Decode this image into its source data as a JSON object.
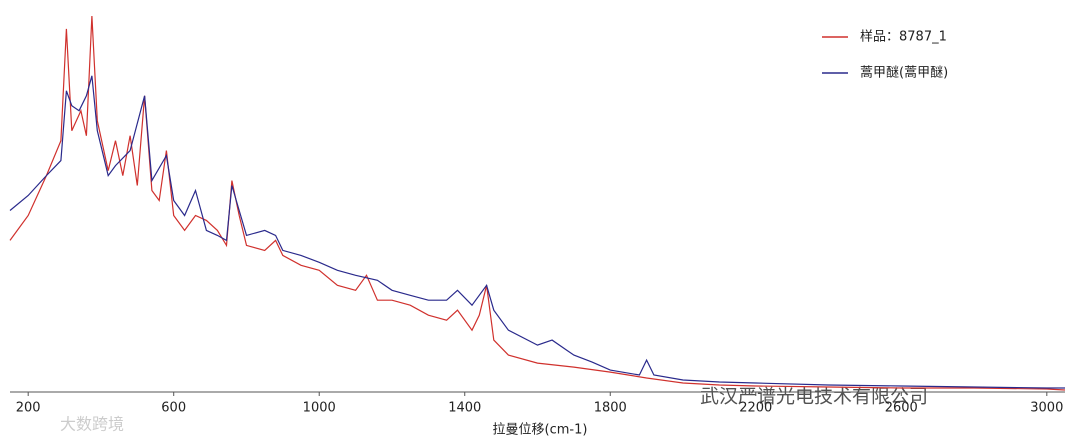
{
  "chart_data": {
    "type": "line",
    "x_label": "拉曼位移(cm-1)",
    "xlim": [
      150,
      3050
    ],
    "xticks": [
      200,
      600,
      1000,
      1400,
      1800,
      2200,
      2600,
      3000
    ],
    "ylim": [
      0,
      385
    ],
    "legend": "top-right",
    "series": [
      {
        "name": "样品：8787_1",
        "color": "#d0312d",
        "x": [
          150,
          200,
          250,
          290,
          305,
          320,
          345,
          360,
          375,
          390,
          420,
          440,
          460,
          480,
          500,
          520,
          540,
          560,
          580,
          600,
          630,
          660,
          690,
          720,
          745,
          760,
          780,
          800,
          850,
          880,
          900,
          950,
          1000,
          1050,
          1100,
          1130,
          1160,
          1200,
          1250,
          1300,
          1350,
          1380,
          1420,
          1440,
          1460,
          1480,
          1520,
          1600,
          1700,
          1800,
          1900,
          2000,
          2100,
          2200,
          2400,
          2600,
          2800,
          3000,
          3050
        ],
        "values": [
          152,
          177,
          217,
          252,
          364,
          262,
          282,
          257,
          377,
          272,
          222,
          252,
          217,
          257,
          207,
          297,
          202,
          192,
          242,
          177,
          162,
          177,
          172,
          162,
          147,
          212,
          177,
          147,
          142,
          152,
          137,
          127,
          122,
          107,
          102,
          117,
          92,
          92,
          87,
          77,
          72,
          82,
          62,
          77,
          107,
          52,
          37,
          29,
          25,
          20,
          14,
          9,
          7,
          6,
          5,
          4,
          4,
          3,
          2
        ]
      },
      {
        "name": "蒿甲醚(蒿甲醚)",
        "color": "#2a2a8c",
        "x": [
          150,
          200,
          250,
          290,
          305,
          320,
          340,
          360,
          375,
          390,
          420,
          440,
          480,
          520,
          540,
          580,
          600,
          630,
          660,
          690,
          720,
          745,
          760,
          780,
          800,
          850,
          880,
          900,
          950,
          1000,
          1050,
          1100,
          1160,
          1200,
          1250,
          1300,
          1350,
          1380,
          1420,
          1460,
          1480,
          1520,
          1600,
          1640,
          1680,
          1700,
          1750,
          1800,
          1880,
          1900,
          1920,
          2000,
          2100,
          2200,
          2400,
          2600,
          2800,
          3000,
          3050
        ],
        "values": [
          182,
          197,
          217,
          232,
          302,
          287,
          282,
          297,
          317,
          262,
          217,
          227,
          242,
          297,
          212,
          237,
          192,
          177,
          202,
          162,
          157,
          152,
          207,
          182,
          157,
          162,
          157,
          142,
          137,
          130,
          122,
          117,
          112,
          102,
          97,
          92,
          92,
          102,
          87,
          107,
          82,
          62,
          47,
          52,
          42,
          37,
          30,
          22,
          17,
          32,
          17,
          12,
          10,
          9,
          7,
          6,
          5,
          4,
          4
        ]
      }
    ]
  },
  "watermarks": [
    "大数跨境",
    "武汉严谱光电技术有限公司"
  ]
}
